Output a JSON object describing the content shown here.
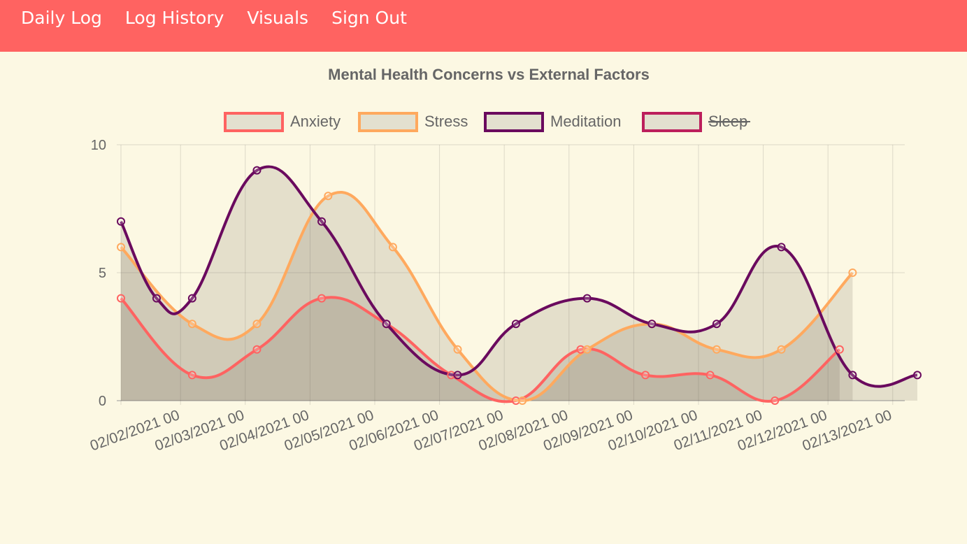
{
  "nav": {
    "links": [
      {
        "label": "Daily Log"
      },
      {
        "label": "Log History"
      },
      {
        "label": "Visuals"
      },
      {
        "label": "Sign Out"
      }
    ]
  },
  "chart_data": {
    "type": "line",
    "title": "Mental Health Concerns vs External Factors",
    "x_ticks": [
      "02/02/2021 00",
      "02/03/2021 00",
      "02/04/2021 00",
      "02/05/2021 00",
      "02/06/2021 00",
      "02/07/2021 00",
      "02/08/2021 00",
      "02/09/2021 00",
      "02/10/2021 00",
      "02/11/2021 00",
      "02/12/2021 00",
      "02/13/2021 00"
    ],
    "y_ticks": [
      "0",
      "5",
      "10"
    ],
    "ylim": [
      0,
      10
    ],
    "x_unit": "day",
    "grid": true,
    "legend_position": "top",
    "series": [
      {
        "name": "Anxiety",
        "color": "#ff6361",
        "hidden": false,
        "points": [
          [
            0,
            4
          ],
          [
            1.1,
            1
          ],
          [
            2.1,
            2
          ],
          [
            3.1,
            4
          ],
          [
            4.1,
            3
          ],
          [
            5.1,
            1
          ],
          [
            6.1,
            0
          ],
          [
            7.1,
            2
          ],
          [
            8.1,
            1
          ],
          [
            9.1,
            1
          ],
          [
            10.1,
            0
          ],
          [
            11.1,
            2
          ]
        ]
      },
      {
        "name": "Stress",
        "color": "#ffa600",
        "hidden": false,
        "points": [
          [
            0,
            6
          ],
          [
            1.1,
            3
          ],
          [
            2.1,
            3
          ],
          [
            3.2,
            8
          ],
          [
            4.2,
            6
          ],
          [
            5.2,
            2
          ],
          [
            6.2,
            0
          ],
          [
            7.2,
            2
          ],
          [
            8.2,
            3
          ],
          [
            9.2,
            2
          ],
          [
            10.2,
            2
          ],
          [
            11.3,
            5
          ]
        ]
      },
      {
        "name": "Meditation",
        "color": "#58508d",
        "hidden": false,
        "points": [
          [
            0,
            7
          ],
          [
            0.55,
            4
          ],
          [
            1.1,
            4
          ],
          [
            2.1,
            9
          ],
          [
            3.1,
            7
          ],
          [
            4.1,
            3
          ],
          [
            5.2,
            1
          ],
          [
            6.1,
            3
          ],
          [
            7.2,
            4
          ],
          [
            8.2,
            3
          ],
          [
            9.2,
            3
          ],
          [
            10.2,
            6
          ],
          [
            11.3,
            1
          ],
          [
            12.3,
            1
          ]
        ]
      },
      {
        "name": "Sleep",
        "color": "#bc5090",
        "hidden": true,
        "points": []
      }
    ]
  }
}
